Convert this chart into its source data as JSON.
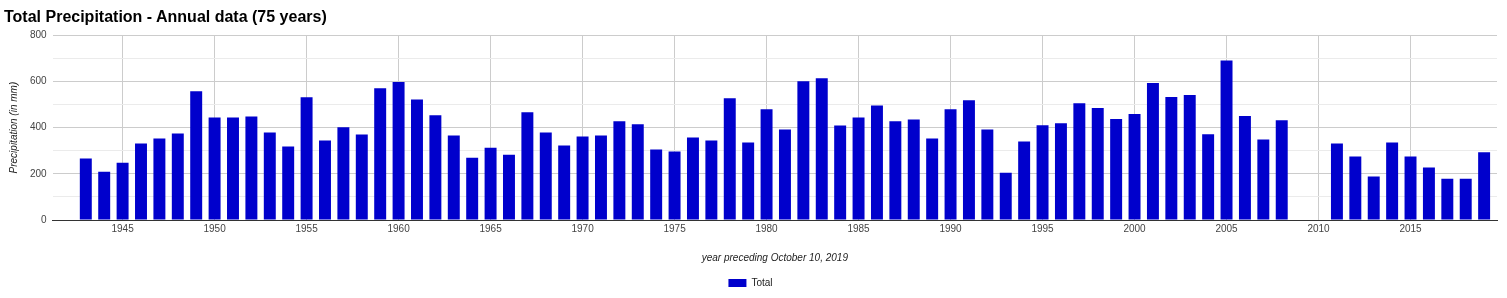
{
  "chart_data": {
    "type": "bar",
    "title": "Total Precipitation - Annual data (75 years)",
    "xlabel": "year preceding October 10, 2019",
    "ylabel": "Precipitation (in mm)",
    "x": [
      1943,
      1944,
      1945,
      1946,
      1947,
      1948,
      1949,
      1950,
      1951,
      1952,
      1953,
      1954,
      1955,
      1956,
      1957,
      1958,
      1959,
      1960,
      1961,
      1962,
      1963,
      1964,
      1965,
      1966,
      1967,
      1968,
      1969,
      1970,
      1971,
      1972,
      1973,
      1974,
      1975,
      1976,
      1977,
      1978,
      1979,
      1980,
      1981,
      1982,
      1983,
      1984,
      1985,
      1986,
      1987,
      1988,
      1989,
      1990,
      1991,
      1992,
      1993,
      1994,
      1995,
      1996,
      1997,
      1998,
      1999,
      2000,
      2001,
      2002,
      2003,
      2004,
      2005,
      2006,
      2007,
      2008,
      2009,
      2010,
      2011,
      2012,
      2013,
      2014,
      2015,
      2016,
      2017,
      2018,
      2019
    ],
    "series": [
      {
        "name": "Total",
        "color": "#0000cc",
        "values": [
          266,
          209,
          248,
          331,
          353,
          374,
          557,
          444,
          444,
          448,
          379,
          318,
          531,
          344,
          401,
          370,
          570,
          597,
          522,
          453,
          366,
          270,
          313,
          283,
          466,
          379,
          322,
          361,
          366,
          427,
          414,
          305,
          296,
          357,
          344,
          527,
          335,
          479,
          392,
          601,
          614,
          409,
          444,
          496,
          427,
          435,
          353,
          479,
          518,
          392,
          205,
          340,
          410,
          419,
          505,
          485,
          437,
          459,
          593,
          532,
          541,
          371,
          690,
          450,
          349,
          432,
          null,
          null,
          331,
          275,
          188,
          336,
          275,
          227,
          179,
          179,
          293
        ]
      }
    ],
    "xlim": [
      1941.2,
      2019.7
    ],
    "xticks": [
      1945,
      1950,
      1955,
      1960,
      1965,
      1970,
      1975,
      1980,
      1985,
      1990,
      1995,
      2000,
      2005,
      2010,
      2015
    ],
    "ylim": [
      0,
      800
    ],
    "yticks": [
      0,
      {
        "value": 100,
        "label": null
      },
      200,
      {
        "value": 300,
        "label": null
      },
      400,
      {
        "value": 500,
        "label": null
      },
      600,
      {
        "value": 700,
        "label": null
      },
      800
    ],
    "grid": true,
    "legend": "bottom"
  }
}
